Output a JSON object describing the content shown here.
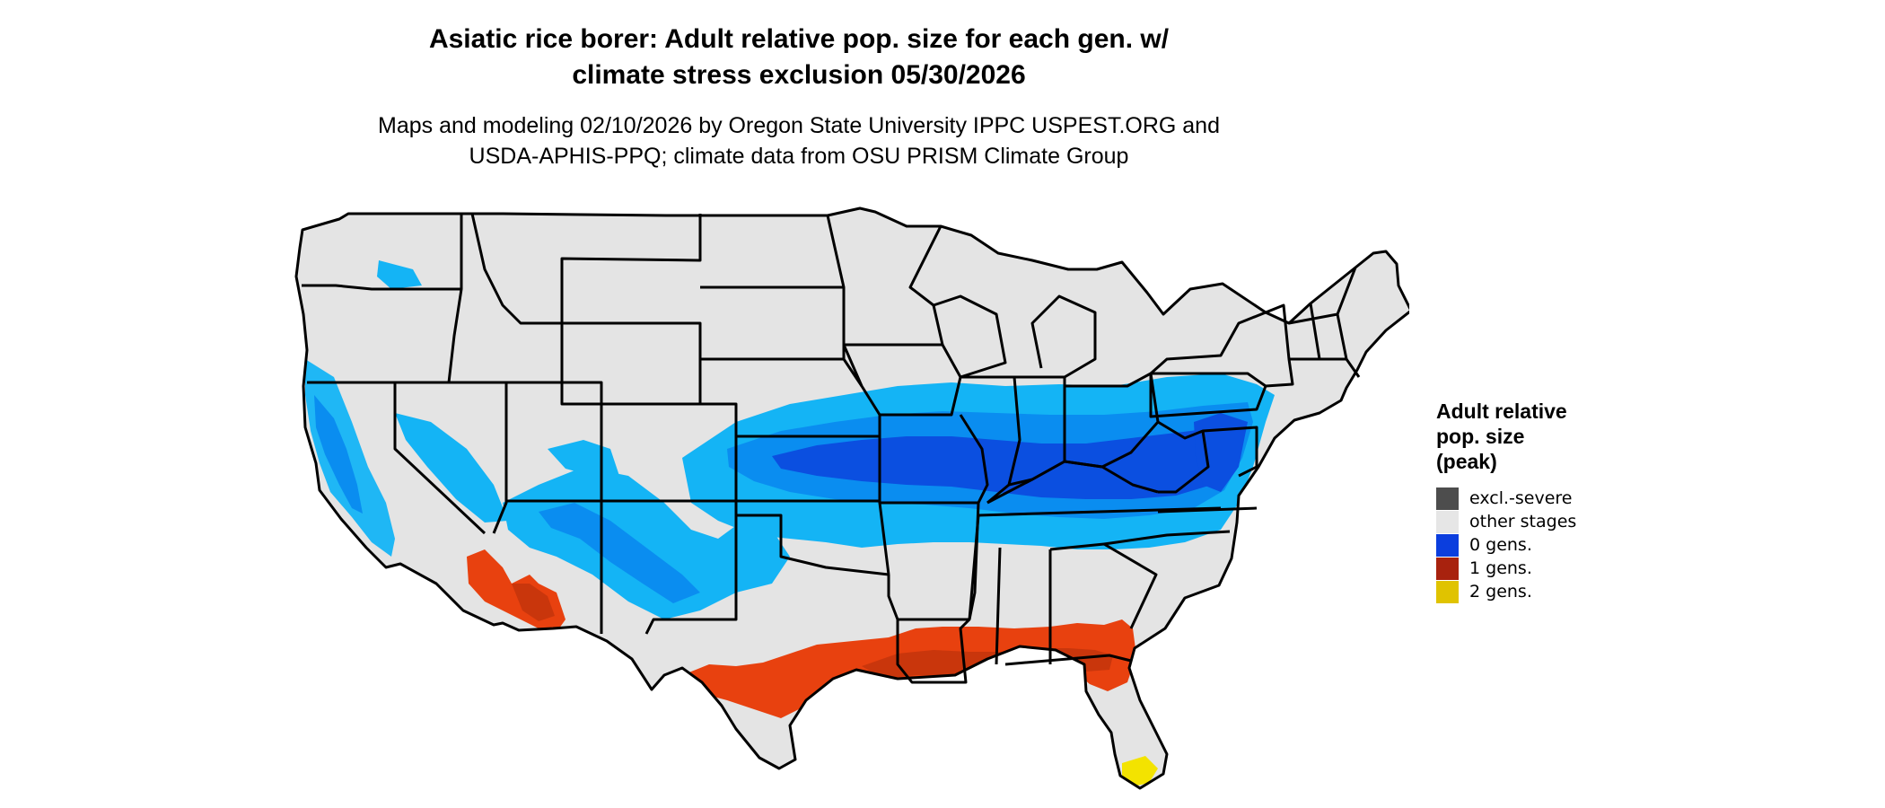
{
  "title": {
    "line1": "Asiatic rice borer: Adult relative pop. size for each gen. w/",
    "line2": "climate stress exclusion 05/30/2026"
  },
  "subtitle": {
    "line1": "Maps and modeling 02/10/2026 by Oregon State University IPPC USPEST.ORG and",
    "line2": "USDA-APHIS-PPQ; climate data from OSU PRISM Climate Group"
  },
  "legend": {
    "title_line1": "Adult relative",
    "title_line2": "pop. size",
    "title_line3": "(peak)",
    "items": [
      {
        "label": "excl.-severe",
        "color": "#4d4d4d"
      },
      {
        "label": "other stages",
        "color": "#e6e6e6"
      },
      {
        "label": "0 gens.",
        "color": "#0b3ede"
      },
      {
        "label": "1 gens.",
        "color": "#a8220e"
      },
      {
        "label": "2 gens.",
        "color": "#e0c300"
      }
    ]
  },
  "colors": {
    "land": "#e4e4e4",
    "border": "#000000",
    "light_blue": "#14b4f5",
    "mid_blue": "#0a8df0",
    "dark_blue": "#0b4fe0",
    "orange_red": "#e8410f",
    "yellow": "#f3e300"
  }
}
